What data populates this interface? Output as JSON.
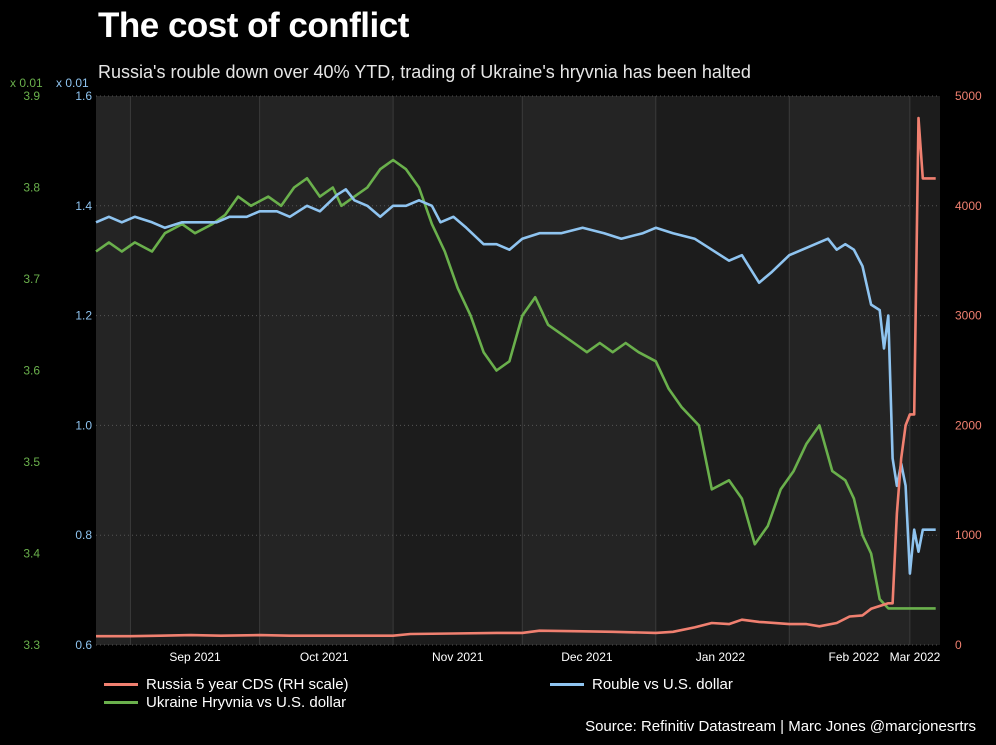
{
  "title": "The cost of conflict",
  "subtitle": "Russia's rouble down over 40% YTD, trading of Ukraine's hryvnia has been halted",
  "source": "Source: Refinitiv Datastream | Marc Jones @marcjonesrtrs",
  "colors": {
    "cds": "#f08070",
    "rouble": "#8fc4f0",
    "hryvnia": "#6ab04c",
    "background": "#000000",
    "plot": "#1c1c1c",
    "band": "#242424"
  },
  "chart_data": {
    "type": "line",
    "grid": true,
    "legend": "bottom",
    "x_ticks": [
      {
        "date": "2021-09-01",
        "label": "Sep 2021"
      },
      {
        "date": "2021-10-01",
        "label": "Oct 2021"
      },
      {
        "date": "2021-11-01",
        "label": "Nov 2021"
      },
      {
        "date": "2021-12-01",
        "label": "Dec 2021"
      },
      {
        "date": "2022-01-01",
        "label": "Jan 2022"
      },
      {
        "date": "2022-02-01",
        "label": "Feb 2022"
      },
      {
        "date": "2022-03-01",
        "label": "Mar 2022"
      }
    ],
    "xlim": [
      "2021-08-24",
      "2022-03-08"
    ],
    "axes": {
      "hryvnia": {
        "multiplier": "x 0.01",
        "ylim": [
          3.3,
          3.9
        ],
        "ticks": [
          "3.3",
          "3.4",
          "3.5",
          "3.6",
          "3.7",
          "3.8",
          "3.9"
        ]
      },
      "rouble": {
        "multiplier": "x 0.01",
        "ylim": [
          0.6,
          1.6
        ],
        "ticks": [
          "0.6",
          "0.8",
          "1.0",
          "1.2",
          "1.4",
          "1.6"
        ]
      },
      "cds": {
        "ylim": [
          0,
          5000
        ],
        "ticks": [
          "0",
          "1000",
          "2000",
          "3000",
          "4000",
          "5000"
        ]
      }
    },
    "series": [
      {
        "name": "Russia 5 year CDS (RH scale)",
        "axis": "cds",
        "points": [
          [
            "2021-08-24",
            80
          ],
          [
            "2021-09-01",
            80
          ],
          [
            "2021-09-08",
            85
          ],
          [
            "2021-09-15",
            90
          ],
          [
            "2021-09-22",
            85
          ],
          [
            "2021-10-01",
            90
          ],
          [
            "2021-10-08",
            85
          ],
          [
            "2021-10-15",
            85
          ],
          [
            "2021-10-22",
            85
          ],
          [
            "2021-11-01",
            85
          ],
          [
            "2021-11-05",
            100
          ],
          [
            "2021-11-15",
            105
          ],
          [
            "2021-11-25",
            110
          ],
          [
            "2021-12-01",
            110
          ],
          [
            "2021-12-05",
            130
          ],
          [
            "2021-12-15",
            125
          ],
          [
            "2021-12-22",
            120
          ],
          [
            "2022-01-01",
            110
          ],
          [
            "2022-01-05",
            120
          ],
          [
            "2022-01-10",
            160
          ],
          [
            "2022-01-14",
            200
          ],
          [
            "2022-01-18",
            190
          ],
          [
            "2022-01-21",
            230
          ],
          [
            "2022-01-25",
            210
          ],
          [
            "2022-02-01",
            190
          ],
          [
            "2022-02-05",
            190
          ],
          [
            "2022-02-08",
            170
          ],
          [
            "2022-02-12",
            200
          ],
          [
            "2022-02-15",
            260
          ],
          [
            "2022-02-18",
            270
          ],
          [
            "2022-02-20",
            330
          ],
          [
            "2022-02-24",
            380
          ],
          [
            "2022-02-25",
            380
          ],
          [
            "2022-02-26",
            1200
          ],
          [
            "2022-02-27",
            1700
          ],
          [
            "2022-02-28",
            2000
          ],
          [
            "2022-03-01",
            2100
          ],
          [
            "2022-03-02",
            2100
          ],
          [
            "2022-03-03",
            4800
          ],
          [
            "2022-03-04",
            4250
          ],
          [
            "2022-03-07",
            4250
          ]
        ]
      },
      {
        "name": "Rouble vs U.S. dollar",
        "axis": "rouble",
        "points": [
          [
            "2021-08-24",
            1.37
          ],
          [
            "2021-08-27",
            1.38
          ],
          [
            "2021-08-30",
            1.37
          ],
          [
            "2021-09-02",
            1.38
          ],
          [
            "2021-09-06",
            1.37
          ],
          [
            "2021-09-09",
            1.36
          ],
          [
            "2021-09-13",
            1.37
          ],
          [
            "2021-09-17",
            1.37
          ],
          [
            "2021-09-21",
            1.37
          ],
          [
            "2021-09-24",
            1.38
          ],
          [
            "2021-09-28",
            1.38
          ],
          [
            "2021-10-01",
            1.39
          ],
          [
            "2021-10-05",
            1.39
          ],
          [
            "2021-10-08",
            1.38
          ],
          [
            "2021-10-12",
            1.4
          ],
          [
            "2021-10-15",
            1.39
          ],
          [
            "2021-10-19",
            1.42
          ],
          [
            "2021-10-21",
            1.43
          ],
          [
            "2021-10-23",
            1.41
          ],
          [
            "2021-10-26",
            1.4
          ],
          [
            "2021-10-29",
            1.38
          ],
          [
            "2021-11-01",
            1.4
          ],
          [
            "2021-11-04",
            1.4
          ],
          [
            "2021-11-07",
            1.41
          ],
          [
            "2021-11-10",
            1.4
          ],
          [
            "2021-11-12",
            1.37
          ],
          [
            "2021-11-15",
            1.38
          ],
          [
            "2021-11-18",
            1.36
          ],
          [
            "2021-11-22",
            1.33
          ],
          [
            "2021-11-25",
            1.33
          ],
          [
            "2021-11-28",
            1.32
          ],
          [
            "2021-12-01",
            1.34
          ],
          [
            "2021-12-05",
            1.35
          ],
          [
            "2021-12-10",
            1.35
          ],
          [
            "2021-12-15",
            1.36
          ],
          [
            "2021-12-20",
            1.35
          ],
          [
            "2021-12-24",
            1.34
          ],
          [
            "2021-12-29",
            1.35
          ],
          [
            "2022-01-01",
            1.36
          ],
          [
            "2022-01-05",
            1.35
          ],
          [
            "2022-01-10",
            1.34
          ],
          [
            "2022-01-14",
            1.32
          ],
          [
            "2022-01-18",
            1.3
          ],
          [
            "2022-01-21",
            1.31
          ],
          [
            "2022-01-25",
            1.26
          ],
          [
            "2022-01-28",
            1.28
          ],
          [
            "2022-02-01",
            1.31
          ],
          [
            "2022-02-04",
            1.32
          ],
          [
            "2022-02-07",
            1.33
          ],
          [
            "2022-02-10",
            1.34
          ],
          [
            "2022-02-12",
            1.32
          ],
          [
            "2022-02-14",
            1.33
          ],
          [
            "2022-02-16",
            1.32
          ],
          [
            "2022-02-18",
            1.29
          ],
          [
            "2022-02-20",
            1.22
          ],
          [
            "2022-02-22",
            1.21
          ],
          [
            "2022-02-23",
            1.14
          ],
          [
            "2022-02-24",
            1.2
          ],
          [
            "2022-02-25",
            0.94
          ],
          [
            "2022-02-26",
            0.89
          ],
          [
            "2022-02-27",
            0.93
          ],
          [
            "2022-02-28",
            0.89
          ],
          [
            "2022-03-01",
            0.73
          ],
          [
            "2022-03-02",
            0.81
          ],
          [
            "2022-03-03",
            0.77
          ],
          [
            "2022-03-04",
            0.81
          ],
          [
            "2022-03-07",
            0.81
          ]
        ]
      },
      {
        "name": "Ukraine Hryvnia vs U.S. dollar",
        "axis": "hryvnia",
        "points": [
          [
            "2021-08-24",
            3.73
          ],
          [
            "2021-08-27",
            3.74
          ],
          [
            "2021-08-30",
            3.73
          ],
          [
            "2021-09-02",
            3.74
          ],
          [
            "2021-09-06",
            3.73
          ],
          [
            "2021-09-09",
            3.75
          ],
          [
            "2021-09-13",
            3.76
          ],
          [
            "2021-09-16",
            3.75
          ],
          [
            "2021-09-20",
            3.76
          ],
          [
            "2021-09-23",
            3.77
          ],
          [
            "2021-09-26",
            3.79
          ],
          [
            "2021-09-29",
            3.78
          ],
          [
            "2021-10-03",
            3.79
          ],
          [
            "2021-10-06",
            3.78
          ],
          [
            "2021-10-09",
            3.8
          ],
          [
            "2021-10-12",
            3.81
          ],
          [
            "2021-10-15",
            3.79
          ],
          [
            "2021-10-18",
            3.8
          ],
          [
            "2021-10-20",
            3.78
          ],
          [
            "2021-10-23",
            3.79
          ],
          [
            "2021-10-26",
            3.8
          ],
          [
            "2021-10-29",
            3.82
          ],
          [
            "2021-11-01",
            3.83
          ],
          [
            "2021-11-04",
            3.82
          ],
          [
            "2021-11-07",
            3.8
          ],
          [
            "2021-11-10",
            3.76
          ],
          [
            "2021-11-13",
            3.73
          ],
          [
            "2021-11-16",
            3.69
          ],
          [
            "2021-11-19",
            3.66
          ],
          [
            "2021-11-22",
            3.62
          ],
          [
            "2021-11-25",
            3.6
          ],
          [
            "2021-11-28",
            3.61
          ],
          [
            "2021-12-01",
            3.66
          ],
          [
            "2021-12-04",
            3.68
          ],
          [
            "2021-12-07",
            3.65
          ],
          [
            "2021-12-10",
            3.64
          ],
          [
            "2021-12-13",
            3.63
          ],
          [
            "2021-12-16",
            3.62
          ],
          [
            "2021-12-19",
            3.63
          ],
          [
            "2021-12-22",
            3.62
          ],
          [
            "2021-12-25",
            3.63
          ],
          [
            "2021-12-28",
            3.62
          ],
          [
            "2022-01-01",
            3.61
          ],
          [
            "2022-01-04",
            3.58
          ],
          [
            "2022-01-07",
            3.56
          ],
          [
            "2022-01-11",
            3.54
          ],
          [
            "2022-01-14",
            3.47
          ],
          [
            "2022-01-18",
            3.48
          ],
          [
            "2022-01-21",
            3.46
          ],
          [
            "2022-01-24",
            3.41
          ],
          [
            "2022-01-27",
            3.43
          ],
          [
            "2022-01-30",
            3.47
          ],
          [
            "2022-02-02",
            3.49
          ],
          [
            "2022-02-05",
            3.52
          ],
          [
            "2022-02-08",
            3.54
          ],
          [
            "2022-02-11",
            3.49
          ],
          [
            "2022-02-14",
            3.48
          ],
          [
            "2022-02-16",
            3.46
          ],
          [
            "2022-02-18",
            3.42
          ],
          [
            "2022-02-20",
            3.4
          ],
          [
            "2022-02-22",
            3.35
          ],
          [
            "2022-02-24",
            3.34
          ],
          [
            "2022-02-26",
            3.34
          ],
          [
            "2022-02-28",
            3.34
          ],
          [
            "2022-03-02",
            3.34
          ],
          [
            "2022-03-04",
            3.34
          ],
          [
            "2022-03-07",
            3.34
          ]
        ]
      }
    ]
  }
}
